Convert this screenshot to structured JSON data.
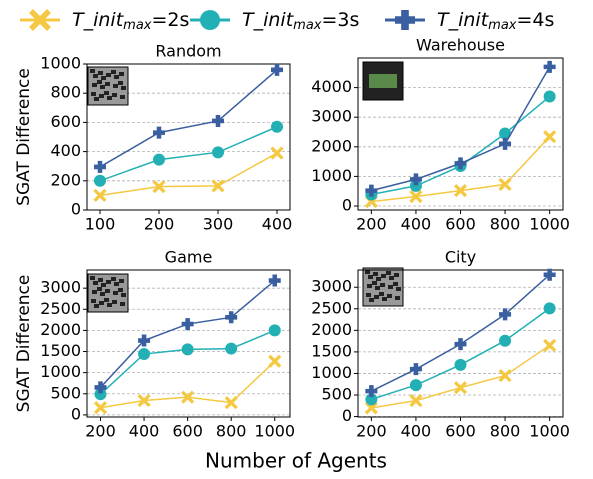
{
  "legend": [
    {
      "text": "T_init",
      "sub": "max",
      "rest": "=2s"
    },
    {
      "text": "T_init",
      "sub": "max",
      "rest": "=3s"
    },
    {
      "text": "T_init",
      "sub": "max",
      "rest": "=4s"
    }
  ],
  "xlabel": "Number of Agents",
  "chart_data": [
    {
      "type": "line",
      "title": "Random",
      "ylabel": "SGAT Difference",
      "x": [
        100,
        200,
        300,
        400
      ],
      "xlim": [
        78,
        422
      ],
      "xticks": [
        100,
        200,
        300,
        400
      ],
      "ylim": [
        0,
        1000
      ],
      "yticks": [
        0,
        200,
        400,
        600,
        800,
        1000
      ],
      "grid": true,
      "series": [
        {
          "color": "#f5c842",
          "marker": "x",
          "values": [
            100,
            160,
            165,
            390
          ]
        },
        {
          "color": "#22b0b4",
          "marker": "circle",
          "values": [
            200,
            345,
            395,
            570
          ]
        },
        {
          "color": "#3a5fa0",
          "marker": "plus",
          "values": [
            295,
            530,
            610,
            960
          ]
        }
      ]
    },
    {
      "type": "line",
      "title": "Warehouse",
      "x": [
        200,
        400,
        600,
        800,
        1000
      ],
      "xlim": [
        140,
        1060
      ],
      "xticks": [
        200,
        400,
        600,
        800,
        1000
      ],
      "ylim": [
        -135,
        5000
      ],
      "yticks": [
        0,
        1000,
        2000,
        3000,
        4000
      ],
      "grid": true,
      "series": [
        {
          "color": "#f5c842",
          "marker": "x",
          "values": [
            150,
            320,
            520,
            730,
            2340
          ]
        },
        {
          "color": "#22b0b4",
          "marker": "circle",
          "values": [
            390,
            680,
            1350,
            2450,
            3700
          ]
        },
        {
          "color": "#3a5fa0",
          "marker": "plus",
          "values": [
            520,
            900,
            1440,
            2100,
            4700
          ]
        }
      ]
    },
    {
      "type": "line",
      "title": "Game",
      "ylabel": "SGAT Difference",
      "x": [
        200,
        400,
        600,
        800,
        1000
      ],
      "xlim": [
        138,
        1070
      ],
      "xticks": [
        200,
        400,
        600,
        800,
        1000
      ],
      "ylim": [
        -50,
        3430
      ],
      "yticks": [
        0,
        500,
        1000,
        1500,
        2000,
        2500,
        3000
      ],
      "grid": true,
      "series": [
        {
          "color": "#f5c842",
          "marker": "x",
          "values": [
            170,
            340,
            420,
            290,
            1270
          ]
        },
        {
          "color": "#22b0b4",
          "marker": "circle",
          "values": [
            490,
            1440,
            1550,
            1570,
            2000
          ]
        },
        {
          "color": "#3a5fa0",
          "marker": "plus",
          "values": [
            650,
            1760,
            2150,
            2310,
            3180
          ]
        }
      ]
    },
    {
      "type": "line",
      "title": "City",
      "x": [
        200,
        400,
        600,
        800,
        1000
      ],
      "xlim": [
        140,
        1060
      ],
      "xticks": [
        200,
        400,
        600,
        800,
        1000
      ],
      "ylim": [
        -10,
        3400
      ],
      "yticks": [
        0,
        500,
        1000,
        1500,
        2000,
        2500,
        3000
      ],
      "grid": true,
      "series": [
        {
          "color": "#f5c842",
          "marker": "x",
          "values": [
            200,
            370,
            670,
            950,
            1650
          ]
        },
        {
          "color": "#22b0b4",
          "marker": "circle",
          "values": [
            400,
            730,
            1200,
            1760,
            2510
          ]
        },
        {
          "color": "#3a5fa0",
          "marker": "plus",
          "values": [
            590,
            1100,
            1680,
            2370,
            3290
          ]
        }
      ]
    }
  ]
}
